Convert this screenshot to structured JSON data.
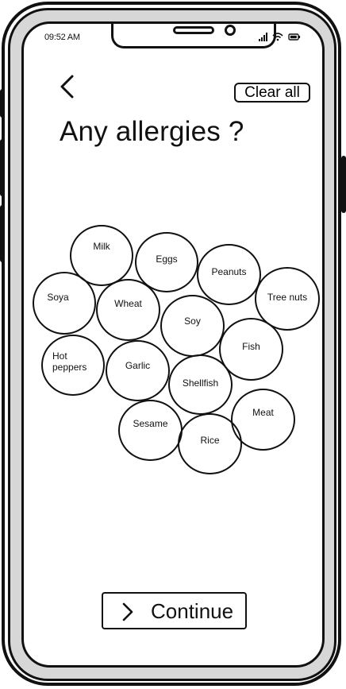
{
  "status_bar": {
    "time": "09:52 AM",
    "icons": [
      "signal-icon",
      "wifi-icon",
      "battery-icon"
    ]
  },
  "header": {
    "back_icon": "chevron-left-icon",
    "clear_label": "Clear all"
  },
  "title": "Any allergies ?",
  "allergens": [
    "Milk",
    "Eggs",
    "Peanuts",
    "Soya",
    "Wheat",
    "Soy",
    "Tree nuts",
    "Fish",
    "Hot peppers",
    "Garlic",
    "Shellfish",
    "Meat",
    "Sesame",
    "Rice"
  ],
  "footer": {
    "continue_label": "Continue",
    "continue_icon": "chevron-right-icon"
  }
}
